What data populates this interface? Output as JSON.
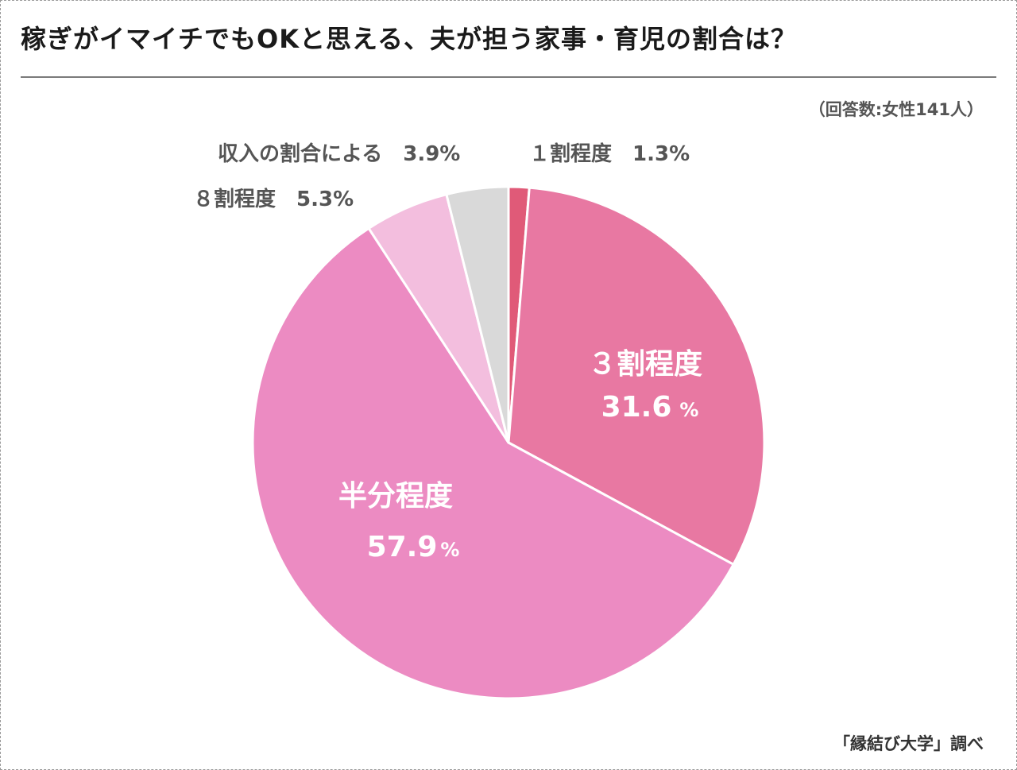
{
  "title": "稼ぎがイマイチでもOKと思える、夫が担う家事・育児の割合は？",
  "respondents_note": "（回答数:女性141人）",
  "source_note": "「縁結び大学」調べ",
  "chart_data": {
    "type": "pie",
    "title": "稼ぎがイマイチでもOKと思える、夫が担う家事・育児の割合は？",
    "unit": "%",
    "slices": [
      {
        "label": "１割程度",
        "value": 1.3,
        "value_text": "1.3%",
        "color": "#e05a78"
      },
      {
        "label": "３割程度",
        "value": 31.6,
        "value_text": "31.6",
        "pct_text": "%",
        "color": "#e878a2"
      },
      {
        "label": "半分程度",
        "value": 57.9,
        "value_text": "57.9",
        "pct_text": "%",
        "color": "#ec8bc2"
      },
      {
        "label": "８割程度",
        "value": 5.3,
        "value_text": "5.3%",
        "color": "#f3bede"
      },
      {
        "label": "収入の割合による",
        "value": 3.9,
        "value_text": "3.9%",
        "color": "#d9d9d9"
      }
    ]
  }
}
